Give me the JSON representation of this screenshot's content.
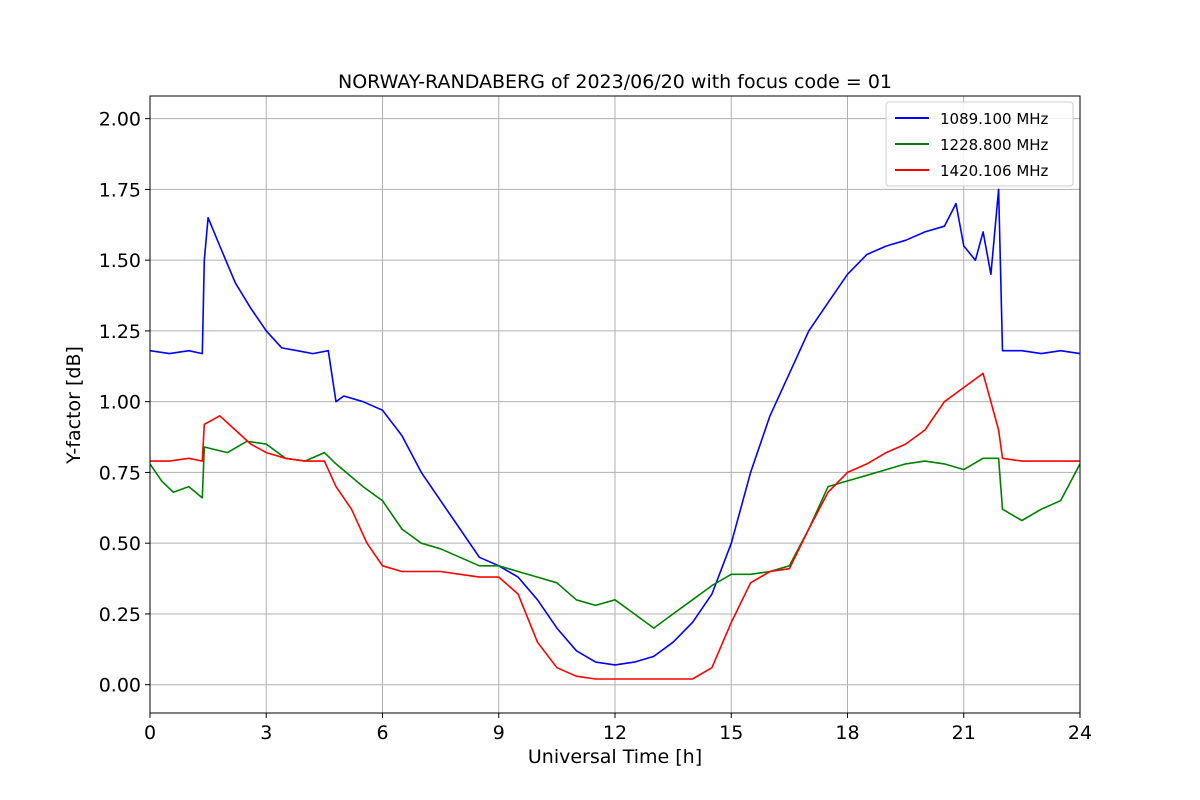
{
  "chart_data": {
    "type": "line",
    "title": "NORWAY-RANDABERG of 2023/06/20 with focus code = 01",
    "xlabel": "Universal Time [h]",
    "ylabel": "Y-factor [dB]",
    "xlim": [
      0,
      24
    ],
    "ylim": [
      -0.1,
      2.08
    ],
    "xticks": [
      0,
      3,
      6,
      9,
      12,
      15,
      18,
      21,
      24
    ],
    "xtick_labels": [
      "0",
      "3",
      "6",
      "9",
      "12",
      "15",
      "18",
      "21",
      "24"
    ],
    "yticks": [
      0.0,
      0.25,
      0.5,
      0.75,
      1.0,
      1.25,
      1.5,
      1.75,
      2.0
    ],
    "ytick_labels": [
      "0.00",
      "0.25",
      "0.50",
      "0.75",
      "1.00",
      "1.25",
      "1.50",
      "1.75",
      "2.00"
    ],
    "grid": true,
    "legend_position": "top-right",
    "series": [
      {
        "name": "1089.100 MHz",
        "color": "#0000ff",
        "x": [
          0,
          0.5,
          1,
          1.35,
          1.4,
          1.5,
          1.8,
          2.2,
          2.6,
          3,
          3.4,
          3.8,
          4.2,
          4.6,
          4.8,
          5.0,
          5.5,
          6.0,
          6.5,
          7.0,
          7.5,
          8.0,
          8.5,
          9.0,
          9.5,
          10.0,
          10.5,
          11.0,
          11.5,
          12.0,
          12.5,
          13.0,
          13.5,
          14.0,
          14.5,
          15.0,
          15.5,
          16.0,
          16.5,
          17.0,
          17.5,
          18.0,
          18.5,
          19.0,
          19.5,
          20.0,
          20.5,
          20.8,
          21.0,
          21.3,
          21.5,
          21.7,
          21.9,
          22.0,
          22.5,
          23.0,
          23.5,
          24.0
        ],
        "y": [
          1.18,
          1.17,
          1.18,
          1.17,
          1.5,
          1.65,
          1.55,
          1.42,
          1.33,
          1.25,
          1.19,
          1.18,
          1.17,
          1.18,
          1.0,
          1.02,
          1.0,
          0.97,
          0.88,
          0.75,
          0.65,
          0.55,
          0.45,
          0.42,
          0.38,
          0.3,
          0.2,
          0.12,
          0.08,
          0.07,
          0.08,
          0.1,
          0.15,
          0.22,
          0.32,
          0.5,
          0.75,
          0.95,
          1.1,
          1.25,
          1.35,
          1.45,
          1.52,
          1.55,
          1.57,
          1.6,
          1.62,
          1.7,
          1.55,
          1.5,
          1.6,
          1.45,
          1.75,
          1.18,
          1.18,
          1.17,
          1.18,
          1.17
        ]
      },
      {
        "name": "1228.800 MHz",
        "color": "#008000",
        "x": [
          0,
          0.3,
          0.6,
          1.0,
          1.35,
          1.4,
          2.0,
          2.5,
          3.0,
          3.5,
          4.0,
          4.5,
          4.8,
          5.5,
          6.0,
          6.5,
          7.0,
          7.5,
          8.0,
          8.5,
          9.0,
          9.5,
          10.0,
          10.5,
          11.0,
          11.5,
          12.0,
          12.5,
          13.0,
          13.5,
          14.0,
          14.5,
          15.0,
          15.5,
          16.0,
          16.5,
          17.0,
          17.5,
          18.0,
          18.5,
          19.0,
          19.5,
          20.0,
          20.5,
          21.0,
          21.5,
          21.9,
          22.0,
          22.5,
          23.0,
          23.5,
          24.0
        ],
        "y": [
          0.78,
          0.72,
          0.68,
          0.7,
          0.66,
          0.84,
          0.82,
          0.86,
          0.85,
          0.8,
          0.79,
          0.82,
          0.78,
          0.7,
          0.65,
          0.55,
          0.5,
          0.48,
          0.45,
          0.42,
          0.42,
          0.4,
          0.38,
          0.36,
          0.3,
          0.28,
          0.3,
          0.25,
          0.2,
          0.25,
          0.3,
          0.35,
          0.39,
          0.39,
          0.4,
          0.42,
          0.55,
          0.7,
          0.72,
          0.74,
          0.76,
          0.78,
          0.79,
          0.78,
          0.76,
          0.8,
          0.8,
          0.62,
          0.58,
          0.62,
          0.65,
          0.78
        ]
      },
      {
        "name": "1420.106 MHz",
        "color": "#ff0000",
        "x": [
          0,
          0.5,
          1.0,
          1.35,
          1.4,
          1.8,
          2.2,
          2.6,
          3.0,
          3.5,
          4.0,
          4.5,
          4.8,
          5.2,
          5.6,
          6.0,
          6.5,
          7.0,
          7.5,
          8.0,
          8.5,
          9.0,
          9.5,
          10.0,
          10.5,
          11.0,
          11.5,
          12.0,
          12.5,
          13.0,
          13.5,
          14.0,
          14.5,
          15.0,
          15.5,
          16.0,
          16.5,
          17.0,
          17.5,
          18.0,
          18.5,
          19.0,
          19.5,
          20.0,
          20.5,
          21.0,
          21.5,
          21.9,
          22.0,
          22.5,
          23.0,
          23.5,
          24.0
        ],
        "y": [
          0.79,
          0.79,
          0.8,
          0.79,
          0.92,
          0.95,
          0.9,
          0.85,
          0.82,
          0.8,
          0.79,
          0.79,
          0.7,
          0.62,
          0.5,
          0.42,
          0.4,
          0.4,
          0.4,
          0.39,
          0.38,
          0.38,
          0.32,
          0.15,
          0.06,
          0.03,
          0.02,
          0.02,
          0.02,
          0.02,
          0.02,
          0.02,
          0.06,
          0.22,
          0.36,
          0.4,
          0.41,
          0.55,
          0.68,
          0.75,
          0.78,
          0.82,
          0.85,
          0.9,
          1.0,
          1.05,
          1.1,
          0.9,
          0.8,
          0.79,
          0.79,
          0.79,
          0.79
        ]
      }
    ]
  }
}
